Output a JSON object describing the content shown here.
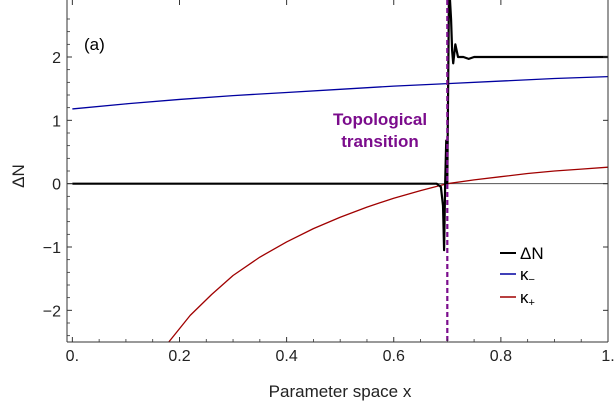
{
  "chart_data": {
    "type": "line",
    "panel_label": "(a)",
    "xlabel": "Parameter space x",
    "ylabel": "ΔN",
    "xlim": [
      -0.01,
      1.0
    ],
    "ylim": [
      -2.5,
      2.9
    ],
    "x_ticks": [
      0.0,
      0.2,
      0.4,
      0.6,
      0.8,
      1.0
    ],
    "x_tick_labels": [
      "0.",
      "0.2",
      "0.4",
      "0.6",
      "0.8",
      "1."
    ],
    "y_ticks": [
      -2,
      -1,
      0,
      1,
      2
    ],
    "y_tick_labels": [
      "−2",
      "−1",
      "0",
      "1",
      "2"
    ],
    "grid": false,
    "legend_position": "bottom-right",
    "annotation": {
      "line1": "Topological",
      "line2": "transition",
      "x": 0.7,
      "color": "#7B0C8C"
    },
    "series": [
      {
        "name": "ΔN",
        "legend_main": "ΔN",
        "legend_sub": "",
        "color": "#000000",
        "x": [
          0.0,
          0.1,
          0.2,
          0.3,
          0.4,
          0.5,
          0.6,
          0.68,
          0.688,
          0.692,
          0.694,
          0.696,
          0.698,
          0.7,
          0.701,
          0.703,
          0.705,
          0.707,
          0.709,
          0.711,
          0.713,
          0.715,
          0.72,
          0.73,
          0.74,
          0.75,
          0.8,
          0.9,
          1.0
        ],
        "y": [
          0.0,
          0.0,
          0.0,
          0.0,
          0.0,
          0.0,
          0.0,
          0.0,
          -0.05,
          -0.35,
          -1.05,
          0.0,
          0.68,
          0.0,
          1.0,
          2.9,
          2.9,
          2.6,
          2.1,
          1.9,
          2.05,
          2.2,
          2.0,
          2.0,
          1.97,
          2.0,
          2.0,
          2.0,
          2.0
        ]
      },
      {
        "name": "κ−",
        "legend_main": "κ",
        "legend_sub": "−",
        "color": "#0000A0",
        "x": [
          0.0,
          0.1,
          0.2,
          0.3,
          0.4,
          0.5,
          0.6,
          0.7,
          0.8,
          0.9,
          1.0
        ],
        "y": [
          1.18,
          1.26,
          1.33,
          1.39,
          1.44,
          1.49,
          1.54,
          1.58,
          1.62,
          1.66,
          1.69
        ]
      },
      {
        "name": "κ+",
        "legend_main": "κ",
        "legend_sub": "+",
        "color": "#A00000",
        "x": [
          0.18,
          0.22,
          0.26,
          0.3,
          0.35,
          0.4,
          0.45,
          0.5,
          0.55,
          0.6,
          0.65,
          0.7,
          0.75,
          0.8,
          0.85,
          0.9,
          0.95,
          1.0
        ],
        "y": [
          -2.5,
          -2.08,
          -1.75,
          -1.45,
          -1.16,
          -0.92,
          -0.71,
          -0.53,
          -0.37,
          -0.23,
          -0.11,
          0.0,
          0.06,
          0.11,
          0.16,
          0.2,
          0.23,
          0.26
        ]
      }
    ]
  }
}
